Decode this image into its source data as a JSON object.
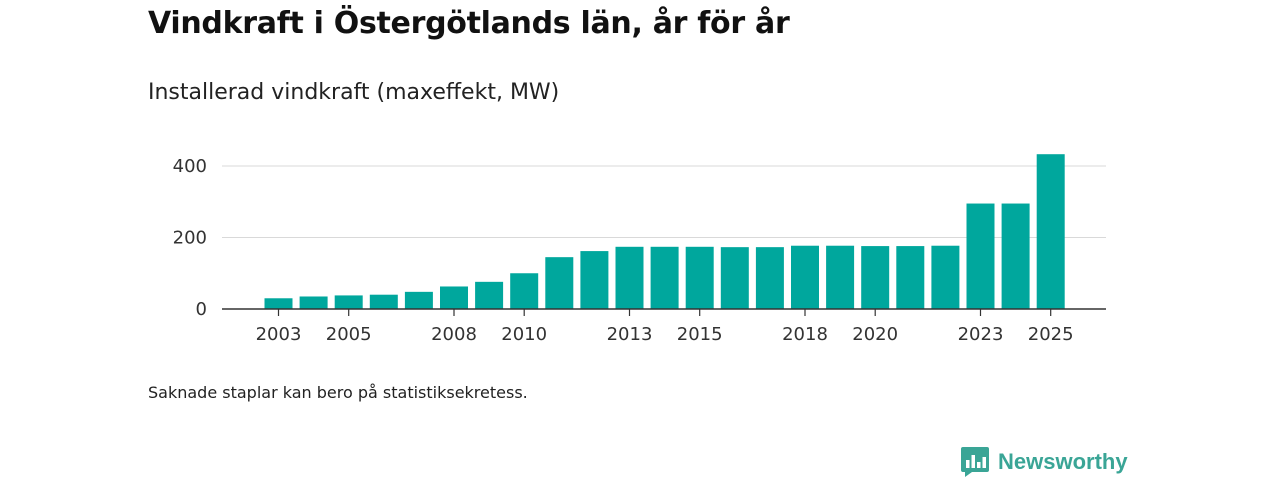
{
  "title": "Vindkraft i Östergötlands län, år för år",
  "subtitle": "Installerad vindkraft (maxeffekt, MW)",
  "note": "Saknade staplar kan bero på statistiksekretess.",
  "brand": {
    "name": "Newsworthy",
    "icon": "bar-chart-logo-icon",
    "color": "#3aa596"
  },
  "chart_data": {
    "type": "bar",
    "title": "Installerad vindkraft (maxeffekt, MW)",
    "xlabel": "",
    "ylabel": "",
    "bar_color": "#00a79d",
    "grid": true,
    "ylim": [
      0,
      440
    ],
    "yticks": [
      0,
      200,
      400
    ],
    "categories": [
      "2003",
      "2004",
      "2005",
      "2006",
      "2007",
      "2008",
      "2009",
      "2010",
      "2011",
      "2012",
      "2013",
      "2014",
      "2015",
      "2016",
      "2017",
      "2018",
      "2019",
      "2020",
      "2021",
      "2022",
      "2023",
      "2024",
      "2025"
    ],
    "xtick_labels": [
      "2003",
      "2005",
      "2008",
      "2010",
      "2013",
      "2015",
      "2018",
      "2020",
      "2023",
      "2025"
    ],
    "values": [
      30,
      35,
      38,
      40,
      48,
      63,
      76,
      100,
      145,
      162,
      174,
      174,
      174,
      173,
      173,
      177,
      177,
      176,
      176,
      177,
      295,
      295,
      433
    ]
  }
}
